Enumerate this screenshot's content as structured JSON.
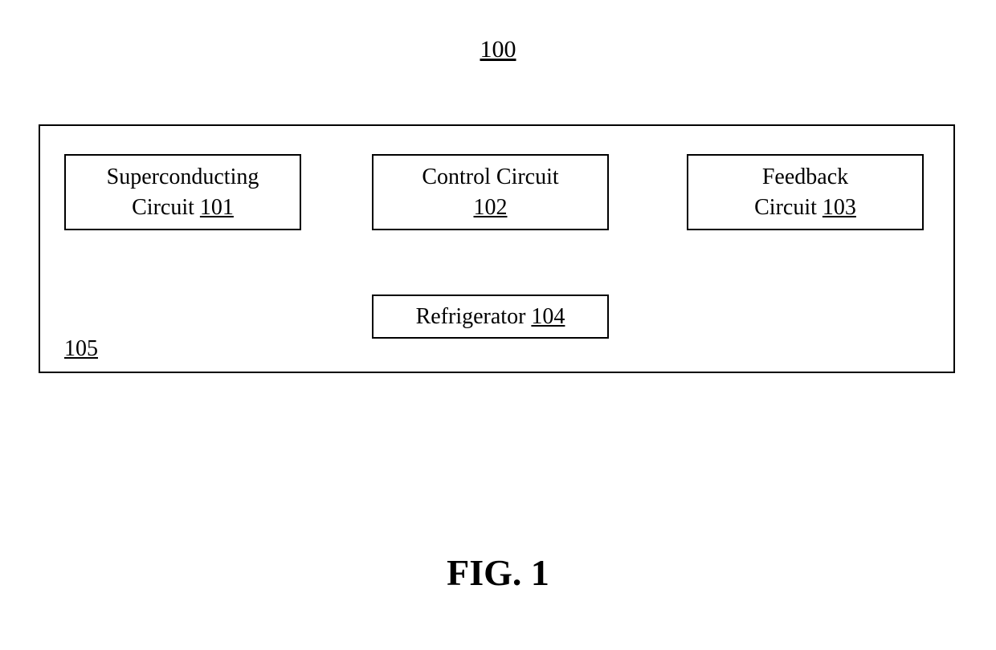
{
  "figure": {
    "top_number": "100",
    "caption": "FIG. 1",
    "container_ref": "105"
  },
  "boxes": {
    "b1": {
      "line1": "Superconducting",
      "line2_text": "Circuit ",
      "line2_ref": "101"
    },
    "b2": {
      "line1": "Control Circuit",
      "line2_ref": "102"
    },
    "b3": {
      "line1": "Feedback",
      "line2_text": "Circuit ",
      "line2_ref": "103"
    },
    "b4": {
      "text": "Refrigerator ",
      "ref": "104"
    }
  },
  "style": {
    "background_color": "#ffffff",
    "border_color": "#000000",
    "text_color": "#000000",
    "font_family": "Times New Roman",
    "top_number_fontsize": 30,
    "box_fontsize": 28,
    "caption_fontsize": 46,
    "border_width": 2
  }
}
